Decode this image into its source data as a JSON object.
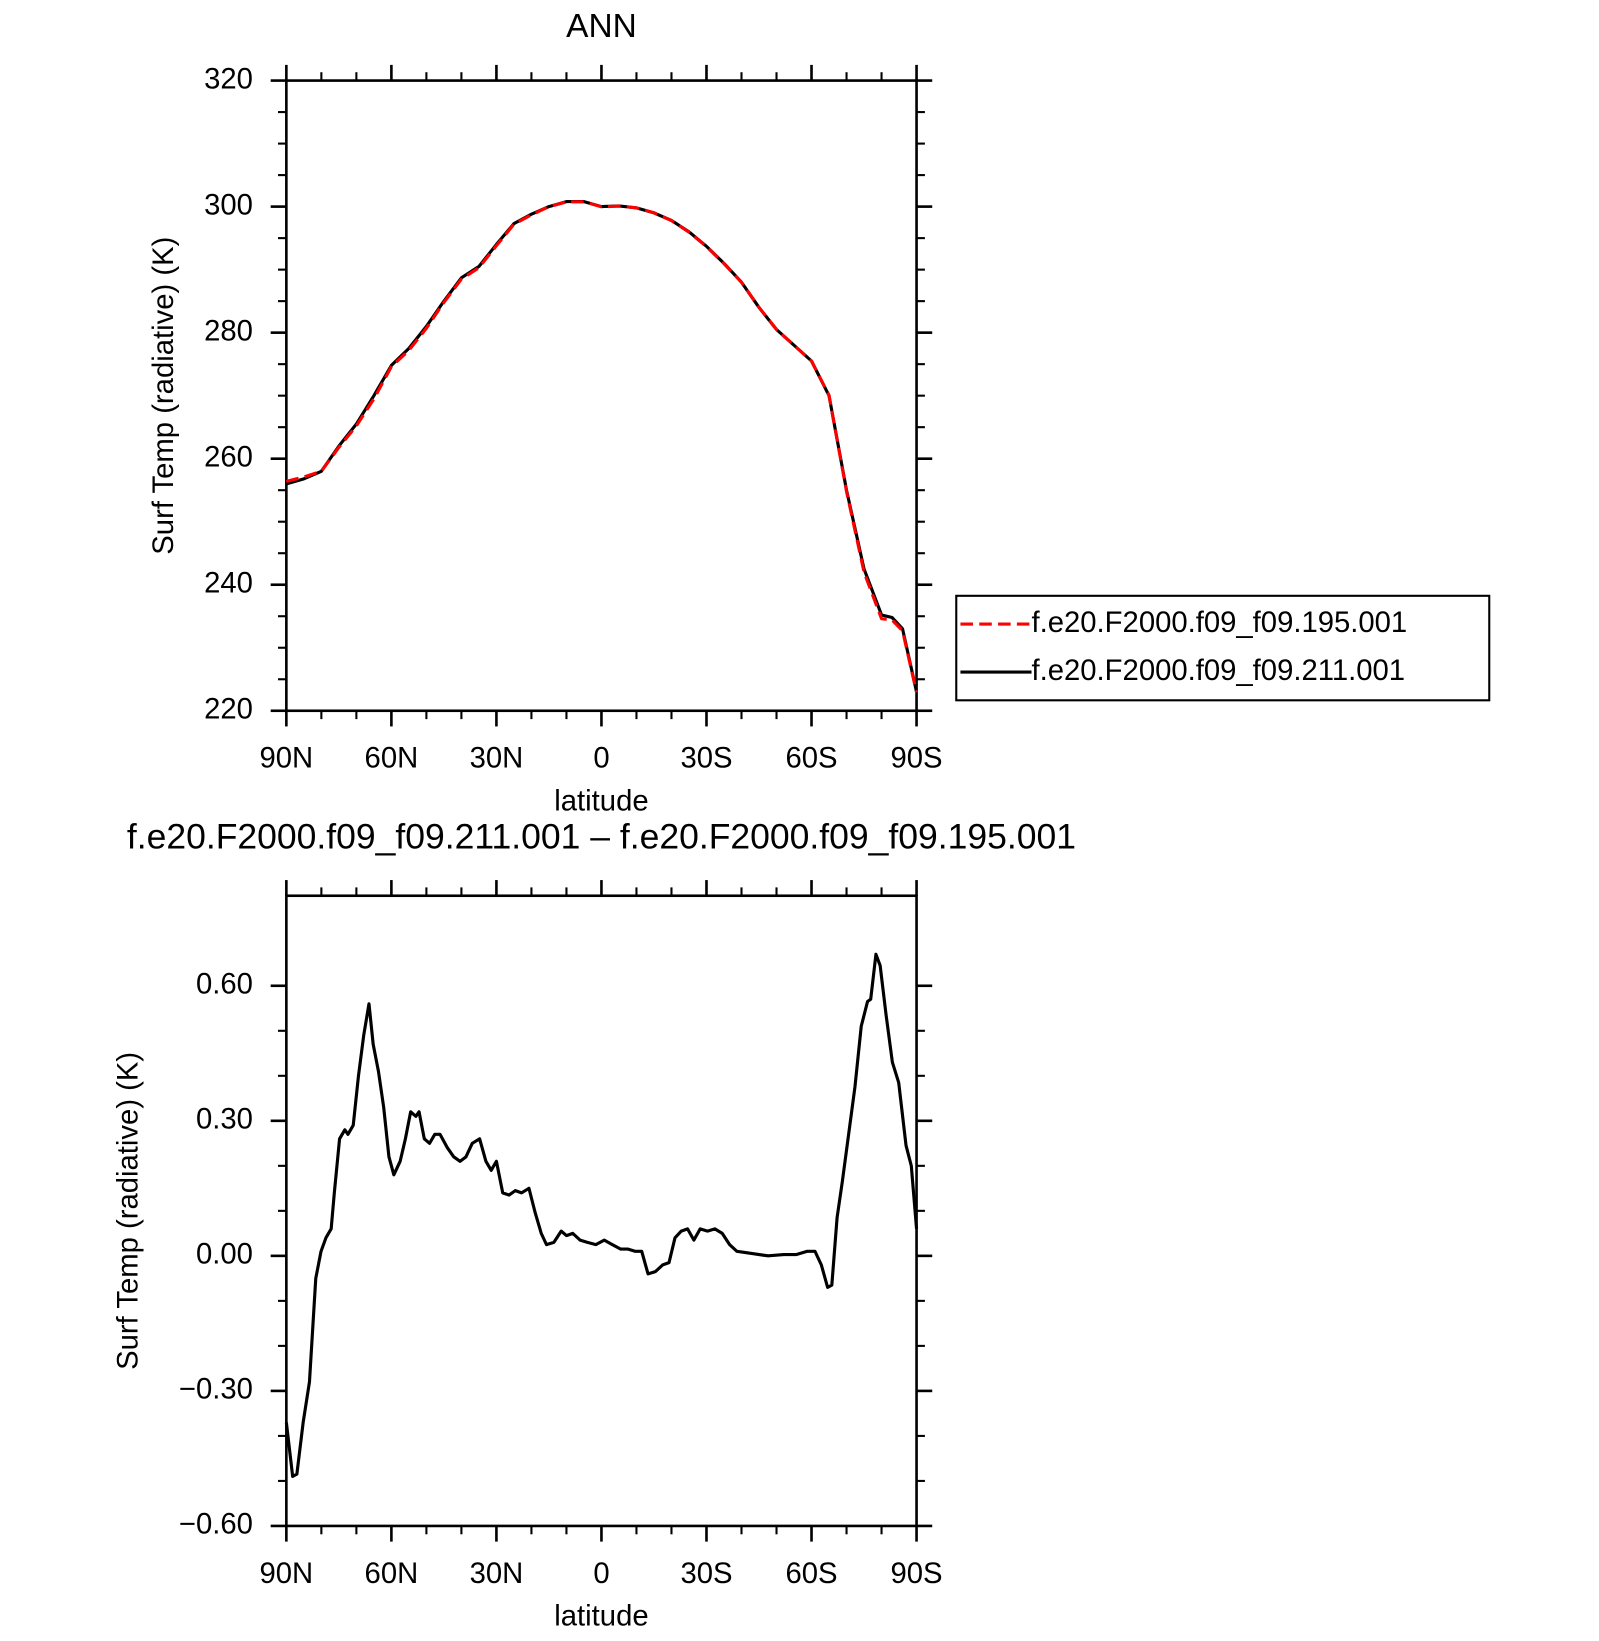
{
  "chart_data": [
    {
      "type": "line",
      "title": "ANN",
      "xlabel": "latitude",
      "ylabel": "Surf Temp (radiative) (K)",
      "x": [
        90,
        85,
        80,
        75,
        70,
        65,
        60,
        55,
        50,
        45,
        40,
        35,
        30,
        25,
        20,
        15,
        10,
        5,
        0,
        -5,
        -10,
        -15,
        -20,
        -25,
        -30,
        -35,
        -40,
        -45,
        -50,
        -55,
        -60,
        -65,
        -70,
        -75,
        -80,
        -83,
        -86,
        -88,
        -90
      ],
      "xlim": [
        90,
        -90
      ],
      "xticks": [
        {
          "value": 90,
          "label": "90N"
        },
        {
          "value": 60,
          "label": "60N"
        },
        {
          "value": 30,
          "label": "30N"
        },
        0,
        {
          "value": -30,
          "label": "30S"
        },
        {
          "value": -60,
          "label": "60S"
        },
        {
          "value": -90,
          "label": "90S"
        }
      ],
      "ylim": [
        220,
        320
      ],
      "yticks": [
        220,
        240,
        260,
        280,
        300,
        320
      ],
      "series": [
        {
          "name": "f.e20.F2000.f09_f09.195.001",
          "color": "#ff0000",
          "linestyle": "dashed",
          "values": [
            256.4,
            257.1,
            258,
            261.8,
            265.2,
            269.5,
            274.6,
            277.2,
            280.7,
            284.8,
            288.5,
            290.3,
            293.8,
            297.2,
            298.7,
            300,
            300.75,
            300.77,
            299.97,
            300.09,
            299.8,
            299.03,
            297.78,
            295.95,
            293.65,
            290.95,
            287.99,
            284,
            280.5,
            278,
            275.49,
            270.05,
            254.8,
            242,
            234.6,
            234.4,
            232.7,
            227.8,
            222.95
          ]
        },
        {
          "name": "f.e20.F2000.f09_f09.211.001",
          "color": "#000000",
          "linestyle": "solid",
          "values": [
            256,
            256.8,
            258,
            262,
            265.5,
            270,
            274.8,
            277.5,
            281,
            285,
            288.7,
            290.5,
            294,
            297.3,
            298.8,
            300,
            300.8,
            300.8,
            300,
            300.1,
            299.8,
            299,
            297.8,
            296,
            293.7,
            291,
            288,
            284,
            280.5,
            278,
            275.5,
            270,
            255,
            242.5,
            235.2,
            234.8,
            233,
            228,
            223
          ]
        }
      ]
    },
    {
      "type": "line",
      "title": "f.e20.F2000.f09_f09.211.001 – f.e20.F2000.f09_f09.195.001",
      "xlabel": "latitude",
      "ylabel": "Surf Temp (radiative) (K)",
      "x": [
        90,
        88.2,
        87,
        85.2,
        83.4,
        81.6,
        80.1,
        78.7,
        77.2,
        76.3,
        74.8,
        73.3,
        72.4,
        70.9,
        69.4,
        67.9,
        66.4,
        65.2,
        63.7,
        62.2,
        60.7,
        59.3,
        57.5,
        56,
        54.5,
        53,
        52.1,
        50.6,
        49.1,
        47.6,
        46.1,
        44,
        42.2,
        40.4,
        38.7,
        36.9,
        34.8,
        33,
        31.5,
        30,
        28.2,
        26.4,
        24.6,
        22.8,
        20.7,
        18.9,
        17.2,
        15.7,
        13.6,
        11.5,
        10,
        8.2,
        6.1,
        4,
        1.6,
        -0.8,
        -3.1,
        -5.5,
        -7.6,
        -9.7,
        -11.5,
        -13.3,
        -15.4,
        -17.5,
        -19.3,
        -21,
        -22.8,
        -24.6,
        -26.4,
        -28.2,
        -30.3,
        -32.4,
        -34.5,
        -36.6,
        -38.7,
        -43.1,
        -47.6,
        -52.1,
        -55.7,
        -58.7,
        -61,
        -62.8,
        -64.6,
        -65.8,
        -67.3,
        -68.8,
        -70.6,
        -72.4,
        -74.2,
        -76,
        -76.9,
        -78.4,
        -79.6,
        -81.3,
        -83.1,
        -84.9,
        -87,
        -88.5,
        -90
      ],
      "xlim": [
        90,
        -90
      ],
      "xticks": [
        {
          "value": 90,
          "label": "90N"
        },
        {
          "value": 60,
          "label": "60N"
        },
        {
          "value": 30,
          "label": "30N"
        },
        0,
        {
          "value": -30,
          "label": "30S"
        },
        {
          "value": -60,
          "label": "60S"
        },
        {
          "value": -90,
          "label": "90S"
        }
      ],
      "ylim": [
        -0.6,
        0.8
      ],
      "yticks": [
        {
          "value": -0.6,
          "label": "−0.60"
        },
        {
          "value": -0.3,
          "label": "−0.30"
        },
        {
          "value": 0,
          "label": "0.00"
        },
        {
          "value": 0.3,
          "label": "0.30"
        },
        {
          "value": 0.6,
          "label": "0.60"
        }
      ],
      "series": [
        {
          "color": "#000000",
          "linestyle": "solid",
          "values": [
            -0.37,
            -0.49,
            -0.485,
            -0.37,
            -0.28,
            -0.05,
            0.01,
            0.04,
            0.06,
            0.14,
            0.26,
            0.28,
            0.27,
            0.29,
            0.4,
            0.49,
            0.56,
            0.47,
            0.41,
            0.33,
            0.22,
            0.18,
            0.21,
            0.26,
            0.32,
            0.31,
            0.32,
            0.26,
            0.25,
            0.27,
            0.27,
            0.24,
            0.22,
            0.21,
            0.22,
            0.25,
            0.26,
            0.21,
            0.19,
            0.21,
            0.14,
            0.135,
            0.145,
            0.14,
            0.15,
            0.095,
            0.05,
            0.025,
            0.03,
            0.055,
            0.045,
            0.05,
            0.035,
            0.03,
            0.025,
            0.035,
            0.025,
            0.015,
            0.015,
            0.01,
            0.01,
            -0.04,
            -0.035,
            -0.02,
            -0.015,
            0.04,
            0.055,
            0.06,
            0.035,
            0.06,
            0.055,
            0.06,
            0.05,
            0.025,
            0.01,
            0.005,
            0,
            0.003,
            0.003,
            0.01,
            0.01,
            -0.02,
            -0.07,
            -0.065,
            0.085,
            0.165,
            0.27,
            0.375,
            0.51,
            0.565,
            0.57,
            0.67,
            0.645,
            0.535,
            0.43,
            0.385,
            0.245,
            0.2,
            0.06
          ]
        }
      ]
    }
  ]
}
